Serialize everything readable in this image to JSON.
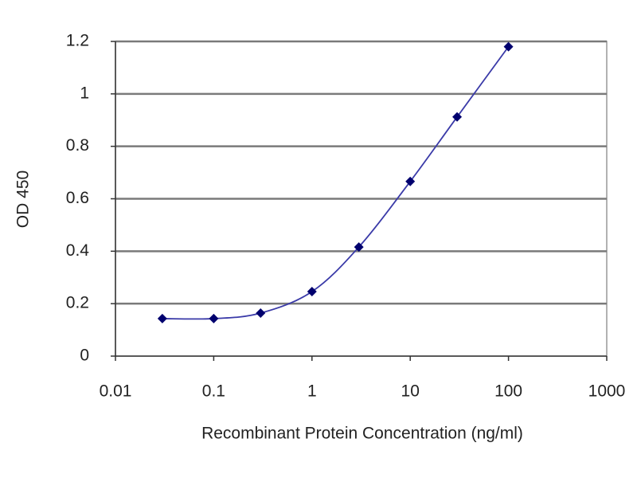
{
  "chart_data": {
    "type": "line",
    "x_label": "Recombinant Protein Concentration (ng/ml)",
    "y_label": "OD 450",
    "x": [
      0.03,
      0.1,
      0.3,
      1,
      3,
      10,
      30,
      100
    ],
    "values": [
      0.143,
      0.143,
      0.164,
      0.246,
      0.416,
      0.666,
      0.912,
      1.18
    ],
    "color": "#3a3aa8",
    "marker_color": "#00006e",
    "xlim": [
      0.01,
      1000
    ],
    "xticks": [
      0.01,
      0.1,
      1,
      10,
      100,
      1000
    ],
    "ylim": [
      0,
      1.2
    ],
    "yticks": [
      0,
      0.2,
      0.4,
      0.6,
      0.8,
      1,
      1.2
    ],
    "log_x": true,
    "grid": true
  }
}
